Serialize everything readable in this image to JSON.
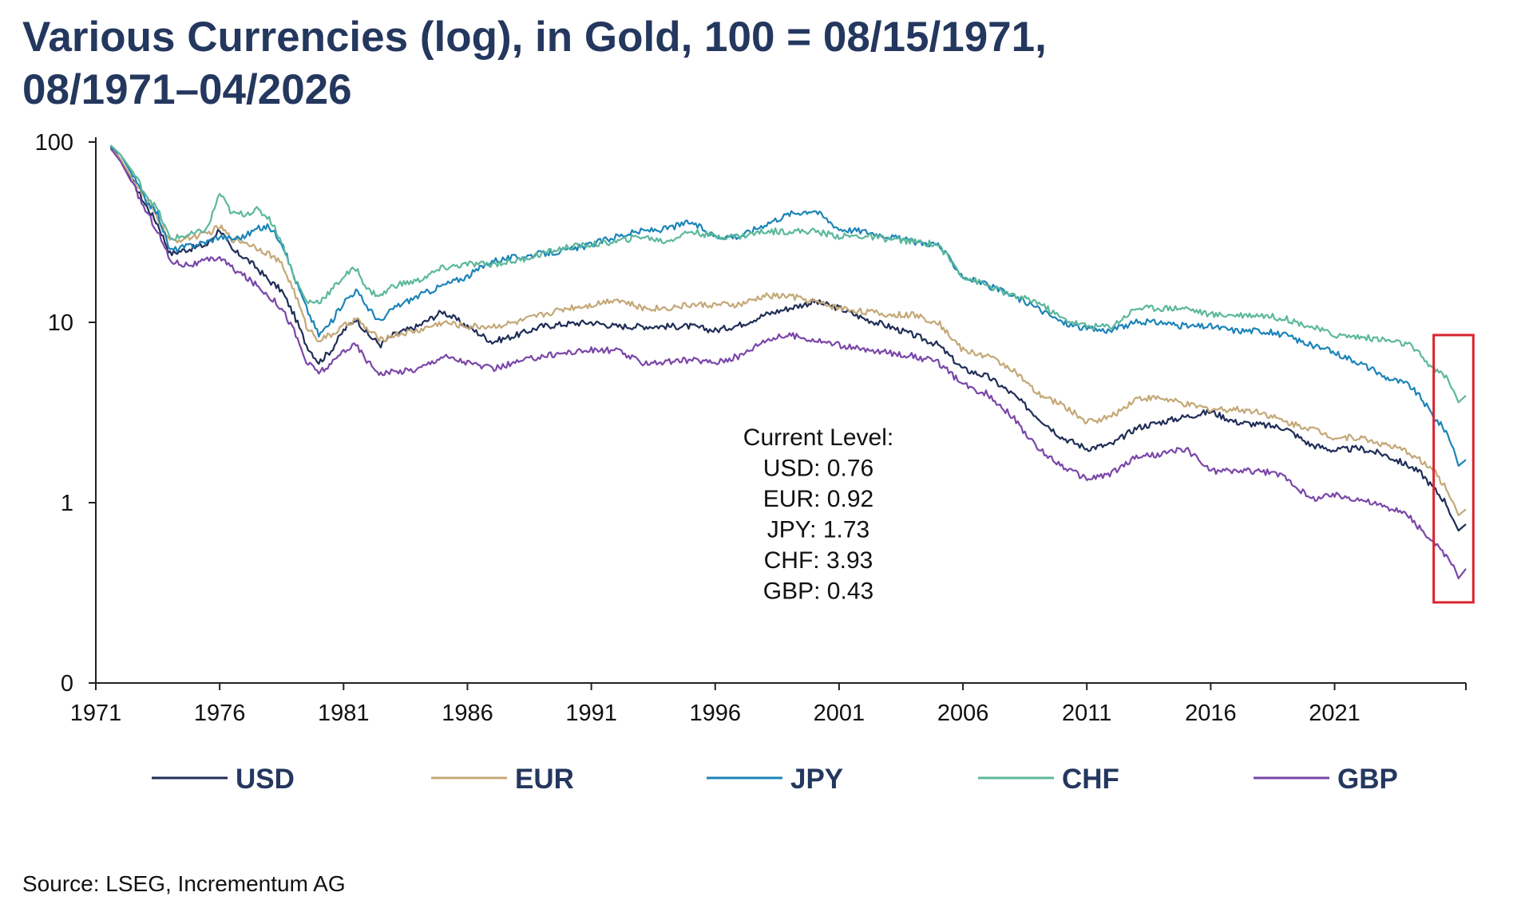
{
  "title_line1": "Various Currencies (log), in Gold, 100 = 08/15/1971,",
  "title_line2": "08/1971–04/2026",
  "source": "Source: LSEG, Incrementum AG",
  "colors": {
    "USD": "#1f2d57",
    "EUR": "#c4a877",
    "JPY": "#1c84b8",
    "CHF": "#5cb89c",
    "GBP": "#7a46a8",
    "highlight": "#d9232e",
    "axis": "#222222"
  },
  "chart_data": {
    "type": "line",
    "title": "Various Currencies (log), in Gold, 100 = 08/15/1971, 08/1971–04/2026",
    "yscale": "log",
    "ylim": [
      0.1,
      100
    ],
    "xlim": [
      1971,
      2026.3
    ],
    "grid": false,
    "legend_position": "bottom",
    "x_ticks": [
      "1971",
      "1976",
      "1981",
      "1986",
      "1991",
      "1996",
      "2001",
      "2006",
      "2011",
      "2016",
      "2021"
    ],
    "y_ticks": [
      {
        "value": 100,
        "label": "100"
      },
      {
        "value": 10,
        "label": "10"
      },
      {
        "value": 1,
        "label": "1"
      },
      {
        "value": 0.1,
        "label": "0"
      }
    ],
    "x": [
      1971.6,
      1972.0,
      1972.5,
      1973.0,
      1973.5,
      1974.0,
      1974.5,
      1975.0,
      1975.5,
      1976.0,
      1976.5,
      1977.0,
      1977.5,
      1978.0,
      1978.5,
      1979.0,
      1979.5,
      1980.0,
      1980.5,
      1981.0,
      1981.5,
      1982.0,
      1982.5,
      1983.0,
      1984.0,
      1985.0,
      1986.0,
      1987.0,
      1988.0,
      1989.0,
      1990.0,
      1991.0,
      1992.0,
      1993.0,
      1994.0,
      1995.0,
      1996.0,
      1997.0,
      1998.0,
      1999.0,
      2000.0,
      2001.0,
      2002.0,
      2003.0,
      2004.0,
      2005.0,
      2006.0,
      2007.0,
      2008.0,
      2009.0,
      2010.0,
      2011.0,
      2012.0,
      2013.0,
      2014.0,
      2015.0,
      2016.0,
      2017.0,
      2018.0,
      2019.0,
      2020.0,
      2021.0,
      2022.0,
      2023.0,
      2024.0,
      2024.5,
      2025.0,
      2025.5,
      2025.8,
      2026.0,
      2026.3
    ],
    "series": [
      {
        "name": "USD",
        "values": [
          95,
          80,
          60,
          45,
          35,
          24,
          25,
          26,
          27,
          33,
          25,
          23,
          20,
          17,
          15,
          11,
          7.5,
          6.0,
          7.0,
          9.0,
          10.5,
          8.5,
          7.5,
          8.5,
          9.5,
          11.5,
          9.5,
          7.8,
          8.5,
          9.5,
          9.8,
          10.0,
          9.5,
          9.5,
          9.5,
          9.5,
          9.0,
          9.7,
          11,
          12,
          13,
          12,
          10.5,
          9.5,
          8.5,
          7.5,
          5.5,
          5.0,
          4.0,
          3.0,
          2.3,
          2.0,
          2.1,
          2.6,
          2.8,
          3.0,
          3.2,
          2.8,
          2.7,
          2.6,
          2.1,
          1.95,
          2.0,
          1.85,
          1.6,
          1.45,
          1.2,
          1.0,
          0.8,
          0.7,
          0.76
        ]
      },
      {
        "name": "EUR",
        "values": [
          93,
          80,
          62,
          48,
          38,
          28,
          29,
          30,
          31,
          34,
          29,
          28,
          26,
          24,
          21,
          15,
          9.5,
          8.0,
          8.5,
          9.5,
          10.5,
          9.0,
          8.0,
          8.5,
          9.0,
          10.0,
          9.5,
          9.5,
          10.0,
          11.0,
          12.0,
          12.5,
          13.5,
          12.0,
          12.0,
          12.5,
          12.5,
          12.5,
          14,
          14,
          13,
          12,
          11.5,
          11,
          11,
          10,
          7.0,
          6.5,
          5.5,
          4.0,
          3.5,
          2.8,
          3.0,
          3.8,
          3.8,
          3.5,
          3.3,
          3.3,
          3.2,
          2.8,
          2.6,
          2.3,
          2.3,
          2.1,
          1.9,
          1.7,
          1.5,
          1.2,
          1.0,
          0.85,
          0.92
        ]
      },
      {
        "name": "JPY",
        "values": [
          94,
          85,
          65,
          48,
          40,
          25,
          26,
          27,
          28,
          30,
          29,
          30,
          33,
          34,
          28,
          18,
          12,
          8.5,
          10,
          13,
          15,
          12,
          10,
          12,
          14,
          16,
          18,
          22,
          23,
          24,
          25,
          27,
          30,
          32,
          33,
          36,
          30,
          30,
          35,
          40,
          42,
          33,
          32,
          30,
          28,
          27,
          18,
          16,
          14,
          12,
          10,
          9.2,
          9.0,
          10,
          10,
          9.5,
          9.5,
          9.0,
          9.0,
          8.5,
          7.5,
          6.8,
          6.0,
          5.0,
          4.5,
          3.8,
          3.0,
          2.5,
          2.0,
          1.6,
          1.73
        ]
      },
      {
        "name": "CHF",
        "values": [
          96,
          85,
          68,
          52,
          42,
          29,
          30,
          31,
          33,
          52,
          40,
          40,
          42,
          38,
          28,
          18,
          13,
          13,
          15,
          18,
          20,
          15,
          14,
          16,
          17,
          20,
          21,
          21,
          22,
          24,
          26,
          27,
          28,
          30,
          28,
          32,
          30,
          30,
          32,
          32,
          32,
          30,
          30,
          29,
          28,
          27,
          18,
          16,
          14,
          13,
          10.5,
          9.5,
          9.5,
          12,
          12,
          12,
          11,
          11,
          11,
          10.5,
          9.5,
          8.5,
          8.3,
          8.0,
          7.5,
          6.5,
          5.5,
          5.0,
          4.2,
          3.6,
          3.93
        ]
      },
      {
        "name": "GBP",
        "values": [
          92,
          78,
          58,
          42,
          32,
          22,
          21,
          21,
          22,
          23,
          20,
          18,
          16,
          14,
          12,
          9,
          6.0,
          5.3,
          5.8,
          7.0,
          7.5,
          6.0,
          5.2,
          5.3,
          5.5,
          6.5,
          6.0,
          5.5,
          6.0,
          6.5,
          6.8,
          7.0,
          7.0,
          6.0,
          6.0,
          6.2,
          6.0,
          6.5,
          8.0,
          8.5,
          8.0,
          7.5,
          7.0,
          6.8,
          6.5,
          6.0,
          4.5,
          4.0,
          3.0,
          2.0,
          1.6,
          1.35,
          1.45,
          1.8,
          1.85,
          2.0,
          1.5,
          1.5,
          1.5,
          1.4,
          1.05,
          1.1,
          1.05,
          0.95,
          0.85,
          0.7,
          0.6,
          0.5,
          0.45,
          0.38,
          0.43
        ]
      }
    ],
    "annotation": {
      "lines": [
        "Current Level:",
        "USD: 0.76",
        "EUR: 0.92",
        "JPY: 1.73",
        "CHF: 3.93",
        "GBP: 0.43"
      ]
    },
    "highlight_box": {
      "x_range": [
        2025.0,
        2026.6
      ],
      "y_range": [
        0.28,
        8.5
      ]
    },
    "legend": [
      "USD",
      "EUR",
      "JPY",
      "CHF",
      "GBP"
    ]
  }
}
